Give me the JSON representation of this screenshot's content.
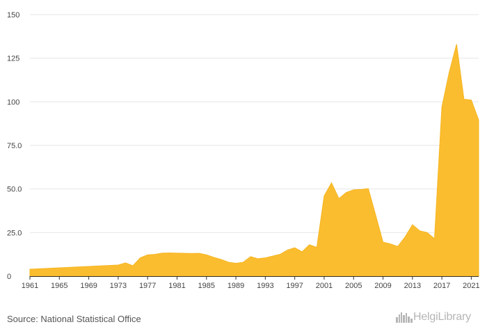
{
  "chart_data": {
    "type": "area",
    "title": "",
    "xlabel": "",
    "ylabel": "",
    "x": [
      1961,
      1962,
      1963,
      1964,
      1965,
      1966,
      1967,
      1968,
      1969,
      1970,
      1971,
      1972,
      1973,
      1974,
      1975,
      1976,
      1977,
      1978,
      1979,
      1980,
      1981,
      1982,
      1983,
      1984,
      1985,
      1986,
      1987,
      1988,
      1989,
      1990,
      1991,
      1992,
      1993,
      1994,
      1995,
      1996,
      1997,
      1998,
      1999,
      2000,
      2001,
      2002,
      2003,
      2004,
      2005,
      2006,
      2007,
      2008,
      2009,
      2010,
      2011,
      2012,
      2013,
      2014,
      2015,
      2016,
      2017,
      2018,
      2019,
      2020,
      2021,
      2022
    ],
    "series": [
      {
        "values": [
          4.0,
          4.2,
          4.4,
          4.6,
          4.8,
          5.0,
          5.2,
          5.4,
          5.6,
          5.8,
          6.0,
          6.2,
          6.4,
          7.6,
          6.0,
          10.5,
          12.2,
          12.5,
          13.2,
          13.3,
          13.2,
          13.1,
          13.0,
          13.1,
          12.2,
          10.8,
          9.6,
          8.0,
          7.4,
          8.0,
          11.2,
          10.0,
          10.5,
          11.5,
          12.5,
          15.0,
          16.3,
          14.0,
          18.0,
          16.5,
          46.0,
          53.5,
          44.5,
          48.0,
          49.5,
          49.7,
          50.2,
          35.0,
          19.5,
          18.5,
          17.0,
          22.5,
          29.5,
          26.0,
          25.0,
          21.5,
          97.0,
          117.0,
          133.0,
          101.5,
          101.0,
          89.5
        ],
        "color": "#fbbd30"
      }
    ],
    "xlim": [
      1961,
      2022
    ],
    "ylim": [
      0,
      150
    ],
    "xticks": [
      "1961",
      "1965",
      "1969",
      "1973",
      "1977",
      "1981",
      "1985",
      "1989",
      "1993",
      "1997",
      "2001",
      "2005",
      "2009",
      "2013",
      "2017",
      "2021"
    ],
    "yticks": [
      "0",
      "25.0",
      "50.0",
      "75.0",
      "100",
      "125",
      "150"
    ],
    "grid": true,
    "legend": "none"
  },
  "footer": {
    "source": "Source: National Statistical Office",
    "logo_text": "HelgiLibrary",
    "logo_icon": "city-skyline-icon"
  }
}
